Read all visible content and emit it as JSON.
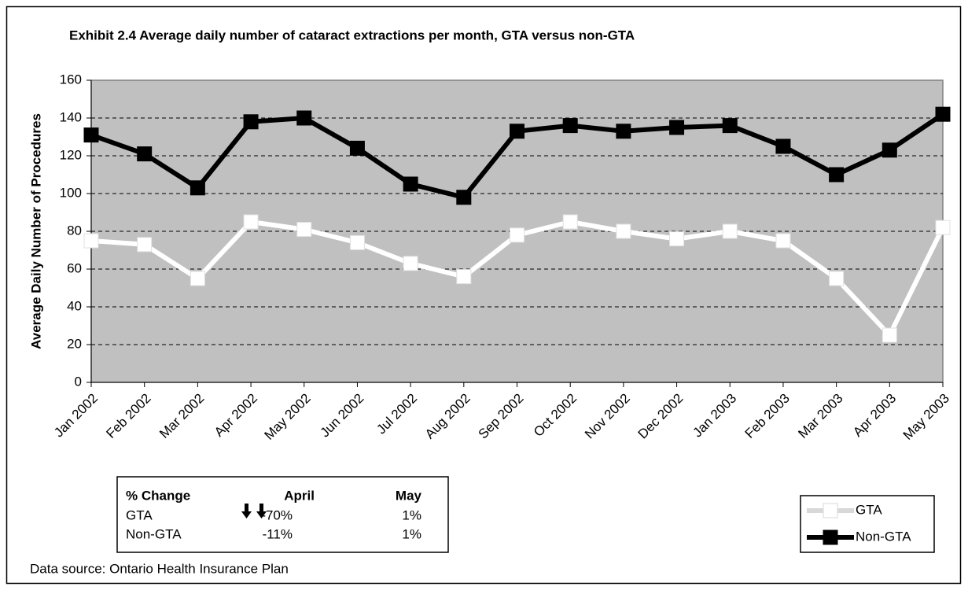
{
  "chart_data": {
    "type": "line",
    "title": "Exhibit 2.4 Average daily number of cataract extractions per month, GTA versus non-GTA",
    "y_label": "Average Daily Number of Procedures",
    "categories": [
      "Jan 2002",
      "Feb 2002",
      "Mar 2002",
      "Apr 2002",
      "May 2002",
      "Jun 2002",
      "Jul 2002",
      "Aug 2002",
      "Sep 2002",
      "Oct 2002",
      "Nov 2002",
      "Dec 2002",
      "Jan 2003",
      "Feb 2003",
      "Mar 2003",
      "Apr 2003",
      "May 2003"
    ],
    "series": [
      {
        "name": "GTA",
        "color": "#ffffff",
        "values": [
          75,
          73,
          55,
          85,
          81,
          74,
          63,
          56,
          78,
          85,
          80,
          76,
          80,
          75,
          55,
          25,
          82
        ]
      },
      {
        "name": "Non-GTA",
        "color": "#000000",
        "values": [
          131,
          121,
          103,
          138,
          140,
          124,
          105,
          98,
          133,
          136,
          133,
          135,
          136,
          125,
          110,
          123,
          142
        ]
      }
    ],
    "ylim": [
      0,
      160
    ],
    "yticks": [
      0,
      20,
      40,
      60,
      80,
      100,
      120,
      140,
      160
    ],
    "grid": true,
    "plot_background": "#c0c0c0",
    "legend_position": "right",
    "table": {
      "header": [
        "% Change",
        "April",
        "May"
      ],
      "rows": [
        [
          "GTA",
          "-70%",
          "1%"
        ],
        [
          "Non-GTA",
          "-11%",
          "1%"
        ]
      ]
    },
    "source": "Data source: Ontario Health Insurance Plan"
  }
}
